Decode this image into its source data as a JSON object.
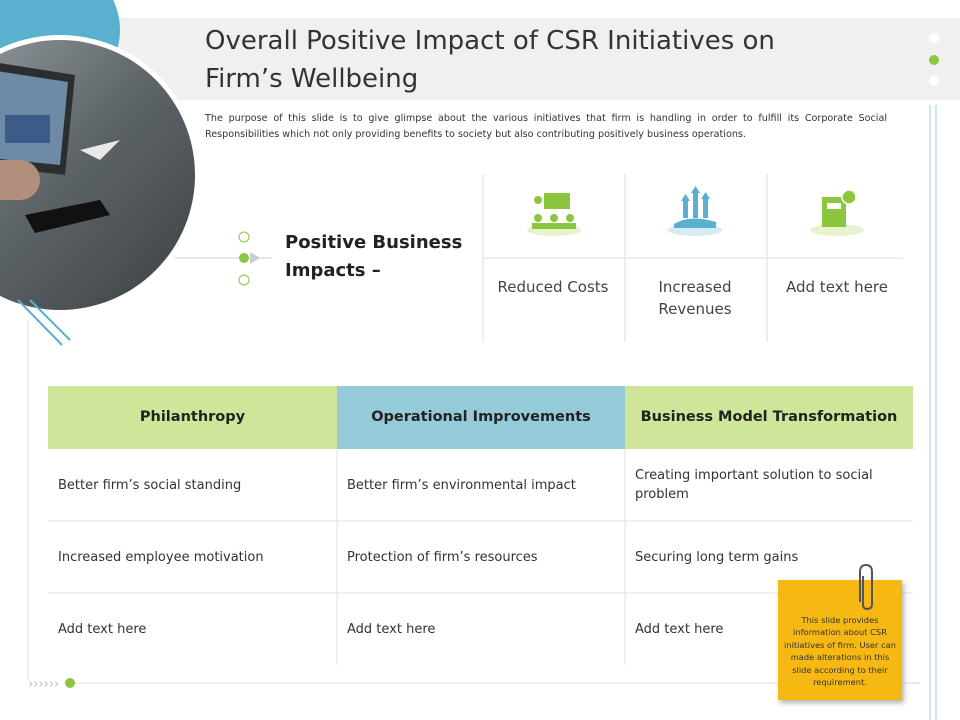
{
  "header": {
    "title": "Overall Positive Impact of CSR Initiatives on Firm’s Wellbeing",
    "description": "The purpose of this slide is to give glimpse about the various initiatives that firm is handling in order to fulfill its Corporate Social Responsibilities which  not only providing benefits to society but also contributing positively business operations."
  },
  "impacts": {
    "heading": "Positive Business Impacts –",
    "items": [
      "Reduced Costs",
      "Increased Revenues",
      "Add text here"
    ]
  },
  "table": {
    "header": [
      "Philanthropy",
      "Operational Improvements",
      "Business Model Transformation"
    ],
    "rows": [
      [
        "Better firm’s social standing",
        "Better firm’s environmental impact",
        "Creating important solution to social problem"
      ],
      [
        "Increased employee motivation",
        "Protection of firm’s resources",
        "Securing long term gains"
      ],
      [
        "Add text here",
        "Add text here",
        "Add text here"
      ]
    ]
  },
  "note": {
    "text": "This slide provides information about  CSR initiatives of firm. User can made alterations in this slide according to their requirement."
  }
}
